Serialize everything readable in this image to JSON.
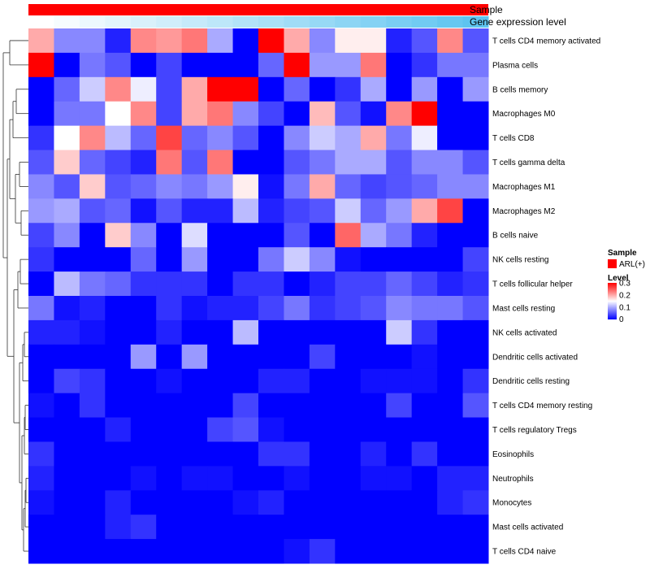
{
  "chart_data": {
    "type": "heatmap",
    "title": "",
    "annotation_tracks": [
      {
        "name": "Sample",
        "value": "ARL(+)",
        "color": "#ff0000"
      },
      {
        "name": "Gene expression level",
        "levels": [
          0.0,
          0.05,
          0.1,
          0.15,
          0.2,
          0.25,
          0.3,
          0.35,
          0.4,
          0.45,
          0.5,
          0.55,
          0.6,
          0.65,
          0.7,
          0.75,
          0.8,
          0.85
        ],
        "low_color": "#ffffff",
        "high_color": "#5ec4f0"
      }
    ],
    "rows": [
      "T cells CD4 memory activated",
      "Plasma cells",
      "B cells memory",
      "Macrophages M0",
      "T cells CD8",
      "T cells gamma delta",
      "Macrophages M1",
      "Macrophages M2",
      "B cells naive",
      "NK cells resting",
      "T cells follicular helper",
      "Mast cells resting",
      "NK cells activated",
      "Dendritic cells activated",
      "Dendritic cells resting",
      "T cells CD4 memory resting",
      "T cells regulatory  Tregs",
      "Eosinophils",
      "Neutrophils",
      "Monocytes",
      "Mast cells activated",
      "T cells CD4 naive"
    ],
    "n_columns": 18,
    "values": [
      [
        0.2,
        0.08,
        0.08,
        0.02,
        0.22,
        0.21,
        0.23,
        0.1,
        0.0,
        0.3,
        0.2,
        0.08,
        0.16,
        0.16,
        0.02,
        0.05,
        0.22,
        0.05
      ],
      [
        0.3,
        0.0,
        0.07,
        0.05,
        0.0,
        0.04,
        0.0,
        0.0,
        0.0,
        0.06,
        0.3,
        0.09,
        0.09,
        0.23,
        0.0,
        0.03,
        0.07,
        0.07
      ],
      [
        0.0,
        0.06,
        0.12,
        0.22,
        0.14,
        0.04,
        0.2,
        0.3,
        0.3,
        0.0,
        0.06,
        0.0,
        0.03,
        0.1,
        0.0,
        0.09,
        0.0,
        0.09
      ],
      [
        0.0,
        0.07,
        0.07,
        0.15,
        0.22,
        0.04,
        0.2,
        0.23,
        0.08,
        0.04,
        0.0,
        0.19,
        0.05,
        0.01,
        0.22,
        0.3,
        0.0,
        0.0
      ],
      [
        0.03,
        0.15,
        0.22,
        0.11,
        0.06,
        0.26,
        0.06,
        0.08,
        0.05,
        0.0,
        0.08,
        0.12,
        0.1,
        0.2,
        0.07,
        0.14,
        0.0,
        0.0
      ],
      [
        0.05,
        0.18,
        0.06,
        0.04,
        0.02,
        0.23,
        0.05,
        0.23,
        0.0,
        0.0,
        0.05,
        0.07,
        0.1,
        0.1,
        0.05,
        0.08,
        0.08,
        0.05
      ],
      [
        0.08,
        0.05,
        0.18,
        0.05,
        0.06,
        0.08,
        0.07,
        0.09,
        0.16,
        0.01,
        0.07,
        0.2,
        0.06,
        0.04,
        0.05,
        0.06,
        0.08,
        0.08
      ],
      [
        0.09,
        0.1,
        0.05,
        0.06,
        0.01,
        0.05,
        0.02,
        0.02,
        0.11,
        0.02,
        0.04,
        0.05,
        0.12,
        0.06,
        0.09,
        0.2,
        0.26,
        0.0
      ],
      [
        0.04,
        0.08,
        0.0,
        0.18,
        0.08,
        0.0,
        0.13,
        0.0,
        0.0,
        0.0,
        0.05,
        0.0,
        0.24,
        0.1,
        0.07,
        0.02,
        0.0,
        0.0
      ],
      [
        0.03,
        0.0,
        0.0,
        0.0,
        0.06,
        0.0,
        0.09,
        0.0,
        0.0,
        0.07,
        0.12,
        0.08,
        0.01,
        0.0,
        0.0,
        0.0,
        0.0,
        0.04
      ],
      [
        0.0,
        0.11,
        0.07,
        0.06,
        0.03,
        0.03,
        0.03,
        0.0,
        0.03,
        0.03,
        0.0,
        0.02,
        0.04,
        0.04,
        0.06,
        0.04,
        0.02,
        0.03
      ],
      [
        0.07,
        0.01,
        0.02,
        0.0,
        0.0,
        0.03,
        0.01,
        0.02,
        0.02,
        0.04,
        0.07,
        0.03,
        0.04,
        0.05,
        0.08,
        0.07,
        0.07,
        0.05
      ],
      [
        0.02,
        0.02,
        0.01,
        0.0,
        0.0,
        0.02,
        0.0,
        0.0,
        0.11,
        0.0,
        0.0,
        0.0,
        0.0,
        0.0,
        0.12,
        0.03,
        0.0,
        0.0
      ],
      [
        0.0,
        0.0,
        0.0,
        0.0,
        0.09,
        0.0,
        0.09,
        0.0,
        0.0,
        0.0,
        0.0,
        0.04,
        0.0,
        0.0,
        0.0,
        0.01,
        0.0,
        0.0
      ],
      [
        0.0,
        0.04,
        0.03,
        0.0,
        0.0,
        0.01,
        0.0,
        0.0,
        0.0,
        0.02,
        0.02,
        0.0,
        0.0,
        0.01,
        0.01,
        0.01,
        0.0,
        0.03
      ],
      [
        0.01,
        0.0,
        0.03,
        0.0,
        0.0,
        0.0,
        0.0,
        0.0,
        0.04,
        0.0,
        0.0,
        0.0,
        0.0,
        0.0,
        0.04,
        0.0,
        0.0,
        0.05
      ],
      [
        0.0,
        0.0,
        0.0,
        0.02,
        0.0,
        0.0,
        0.0,
        0.04,
        0.05,
        0.01,
        0.0,
        0.0,
        0.0,
        0.0,
        0.0,
        0.0,
        0.0,
        0.0
      ],
      [
        0.03,
        0.0,
        0.0,
        0.0,
        0.0,
        0.0,
        0.0,
        0.0,
        0.0,
        0.03,
        0.03,
        0.0,
        0.0,
        0.02,
        0.0,
        0.03,
        0.0,
        0.0
      ],
      [
        0.02,
        0.0,
        0.0,
        0.0,
        0.01,
        0.0,
        0.01,
        0.01,
        0.0,
        0.0,
        0.01,
        0.0,
        0.0,
        0.01,
        0.01,
        0.0,
        0.02,
        0.02
      ],
      [
        0.01,
        0.0,
        0.0,
        0.02,
        0.0,
        0.0,
        0.0,
        0.0,
        0.01,
        0.02,
        0.0,
        0.0,
        0.0,
        0.0,
        0.0,
        0.0,
        0.02,
        0.03
      ],
      [
        0.0,
        0.0,
        0.0,
        0.02,
        0.03,
        0.0,
        0.0,
        0.0,
        0.0,
        0.0,
        0.0,
        0.0,
        0.0,
        0.0,
        0.0,
        0.0,
        0.0,
        0.0
      ],
      [
        0.0,
        0.0,
        0.0,
        0.0,
        0.0,
        0.0,
        0.0,
        0.0,
        0.0,
        0.0,
        0.01,
        0.03,
        0.0,
        0.0,
        0.0,
        0.0,
        0.0,
        0.0
      ]
    ],
    "color_scale": {
      "min": 0,
      "mid": 0.15,
      "max": 0.3,
      "low_color": "#0000ff",
      "mid_color": "#ffffff",
      "high_color": "#ff0000"
    },
    "legend": {
      "sample_title": "Sample",
      "sample_label": "ARL(+)",
      "level_title": "Level",
      "level_ticks": [
        "0.3",
        "0.2",
        "0.1",
        "0"
      ],
      "level_tick_values": [
        0.3,
        0.2,
        0.1,
        0
      ]
    }
  }
}
